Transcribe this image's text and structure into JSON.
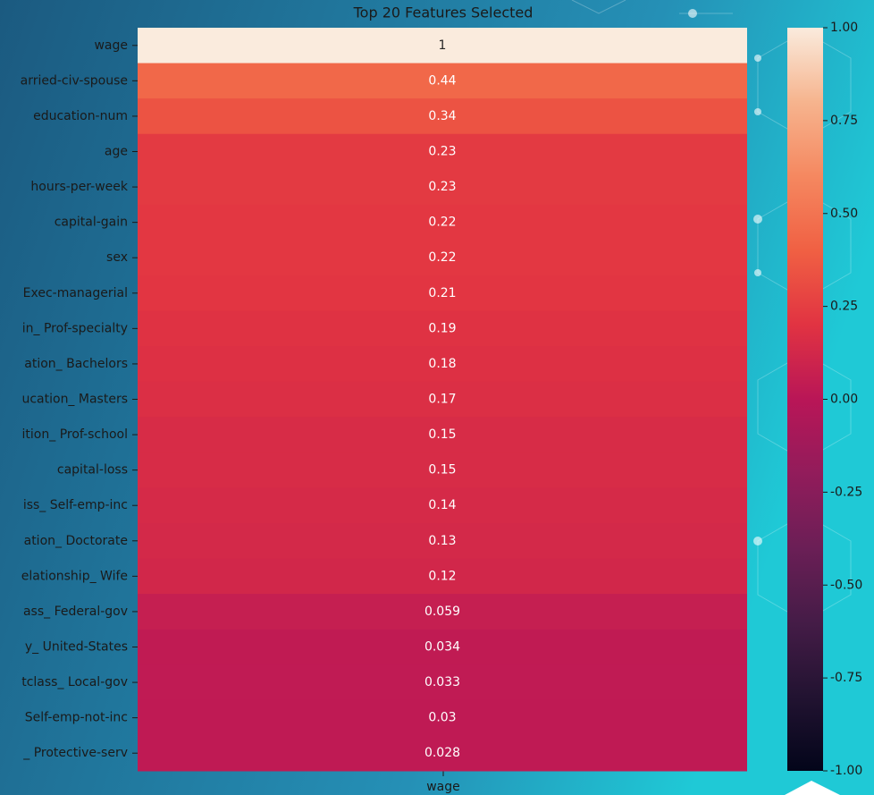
{
  "chart_data": {
    "type": "heatmap",
    "title": "Top 20 Features Selected",
    "xlabel": "wage",
    "categories": [
      "wage",
      "arried-civ-spouse",
      "education-num",
      "age",
      "hours-per-week",
      "capital-gain",
      "sex",
      "Exec-managerial",
      "in_ Prof-specialty",
      "ation_ Bachelors",
      "ucation_ Masters",
      "ition_ Prof-school",
      "capital-loss",
      "iss_ Self-emp-inc",
      "ation_ Doctorate",
      "elationship_ Wife",
      "ass_ Federal-gov",
      "y_ United-States",
      "tclass_ Local-gov",
      "Self-emp-not-inc",
      "_ Protective-serv"
    ],
    "values": [
      1,
      0.44,
      0.34,
      0.23,
      0.23,
      0.22,
      0.22,
      0.21,
      0.19,
      0.18,
      0.17,
      0.15,
      0.15,
      0.14,
      0.13,
      0.12,
      0.059,
      0.034,
      0.033,
      0.03,
      0.028
    ],
    "colormap": "rocket",
    "clim": [
      -1,
      1
    ],
    "cticks": [
      {
        "value": 1,
        "label": "1.00"
      },
      {
        "value": 0.75,
        "label": "0.75"
      },
      {
        "value": 0.5,
        "label": "0.50"
      },
      {
        "value": 0.25,
        "label": "0.25"
      },
      {
        "value": 0,
        "label": "0.00"
      },
      {
        "value": -0.25,
        "label": "-0.25"
      },
      {
        "value": -0.5,
        "label": "-0.50"
      },
      {
        "value": -0.75,
        "label": "-0.75"
      },
      {
        "value": -1,
        "label": "-1.00"
      }
    ]
  }
}
